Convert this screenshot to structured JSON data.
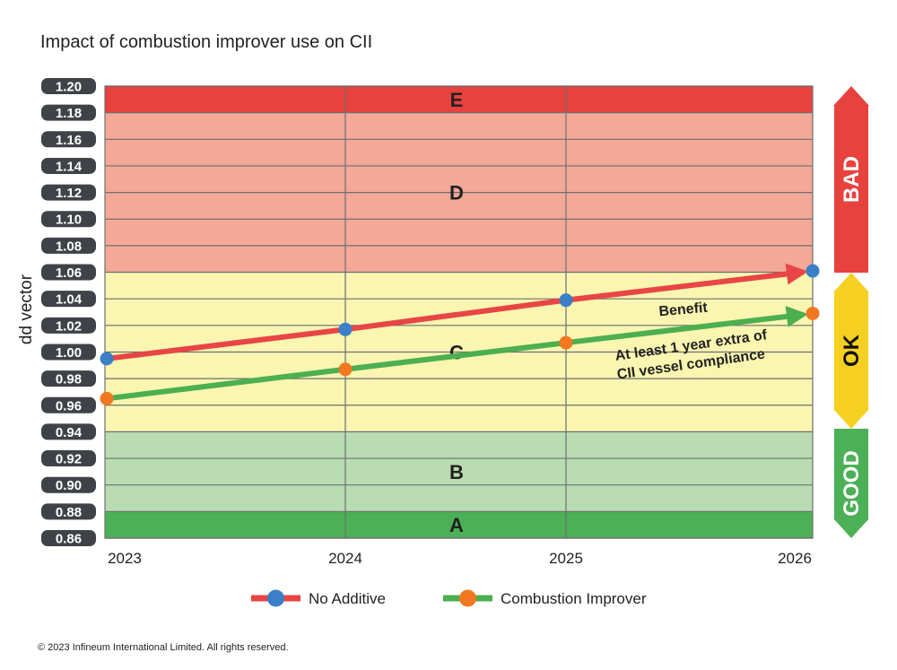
{
  "title": "Impact of combustion improver use on CII",
  "copyright": "© 2023 Infineum International Limited. All rights reserved.",
  "chart_data": {
    "type": "line",
    "ylabel": "dd vector",
    "xlabel": "",
    "ylim": [
      0.86,
      1.2
    ],
    "y_ticks": [
      "1.20",
      "1.18",
      "1.16",
      "1.14",
      "1.12",
      "1.10",
      "1.08",
      "1.06",
      "1.04",
      "1.02",
      "1.00",
      "0.98",
      "0.96",
      "0.94",
      "0.92",
      "0.90",
      "0.88",
      "0.86"
    ],
    "x_ticks": [
      "2023",
      "2024",
      "2025",
      "2026"
    ],
    "series": [
      {
        "name": "No Additive",
        "x": [
          2023,
          2024,
          2025,
          2026
        ],
        "values": [
          0.995,
          1.017,
          1.039,
          1.061
        ],
        "color": "#e84545",
        "marker_color": "#3a7fc8"
      },
      {
        "name": "Combustion Improver",
        "x": [
          2023,
          2024,
          2025,
          2026
        ],
        "values": [
          0.965,
          0.987,
          1.007,
          1.029
        ],
        "color": "#4caf50",
        "marker_color": "#f07820"
      }
    ],
    "zones": [
      {
        "label": "E",
        "from": 1.18,
        "to": 1.2,
        "color": "#e8423f"
      },
      {
        "label": "D",
        "from": 1.06,
        "to": 1.18,
        "color": "#f5a898"
      },
      {
        "label": "C",
        "from": 0.94,
        "to": 1.06,
        "color": "#faf5b0"
      },
      {
        "label": "B",
        "from": 0.88,
        "to": 0.94,
        "color": "#b9dcb2"
      },
      {
        "label": "A",
        "from": 0.86,
        "to": 0.88,
        "color": "#4cb056"
      }
    ],
    "side_arrows": [
      {
        "label": "BAD",
        "color": "#e8423f",
        "text_color": "#ffffff"
      },
      {
        "label": "OK",
        "color": "#f5d020",
        "text_color": "#111111"
      },
      {
        "label": "GOOD",
        "color": "#4cb056",
        "text_color": "#ffffff"
      }
    ],
    "annotations": {
      "benefit": "Benefit",
      "line1": "At least 1 year extra of",
      "line2": "CII vessel compliance"
    },
    "legend_placement": "bottom"
  }
}
